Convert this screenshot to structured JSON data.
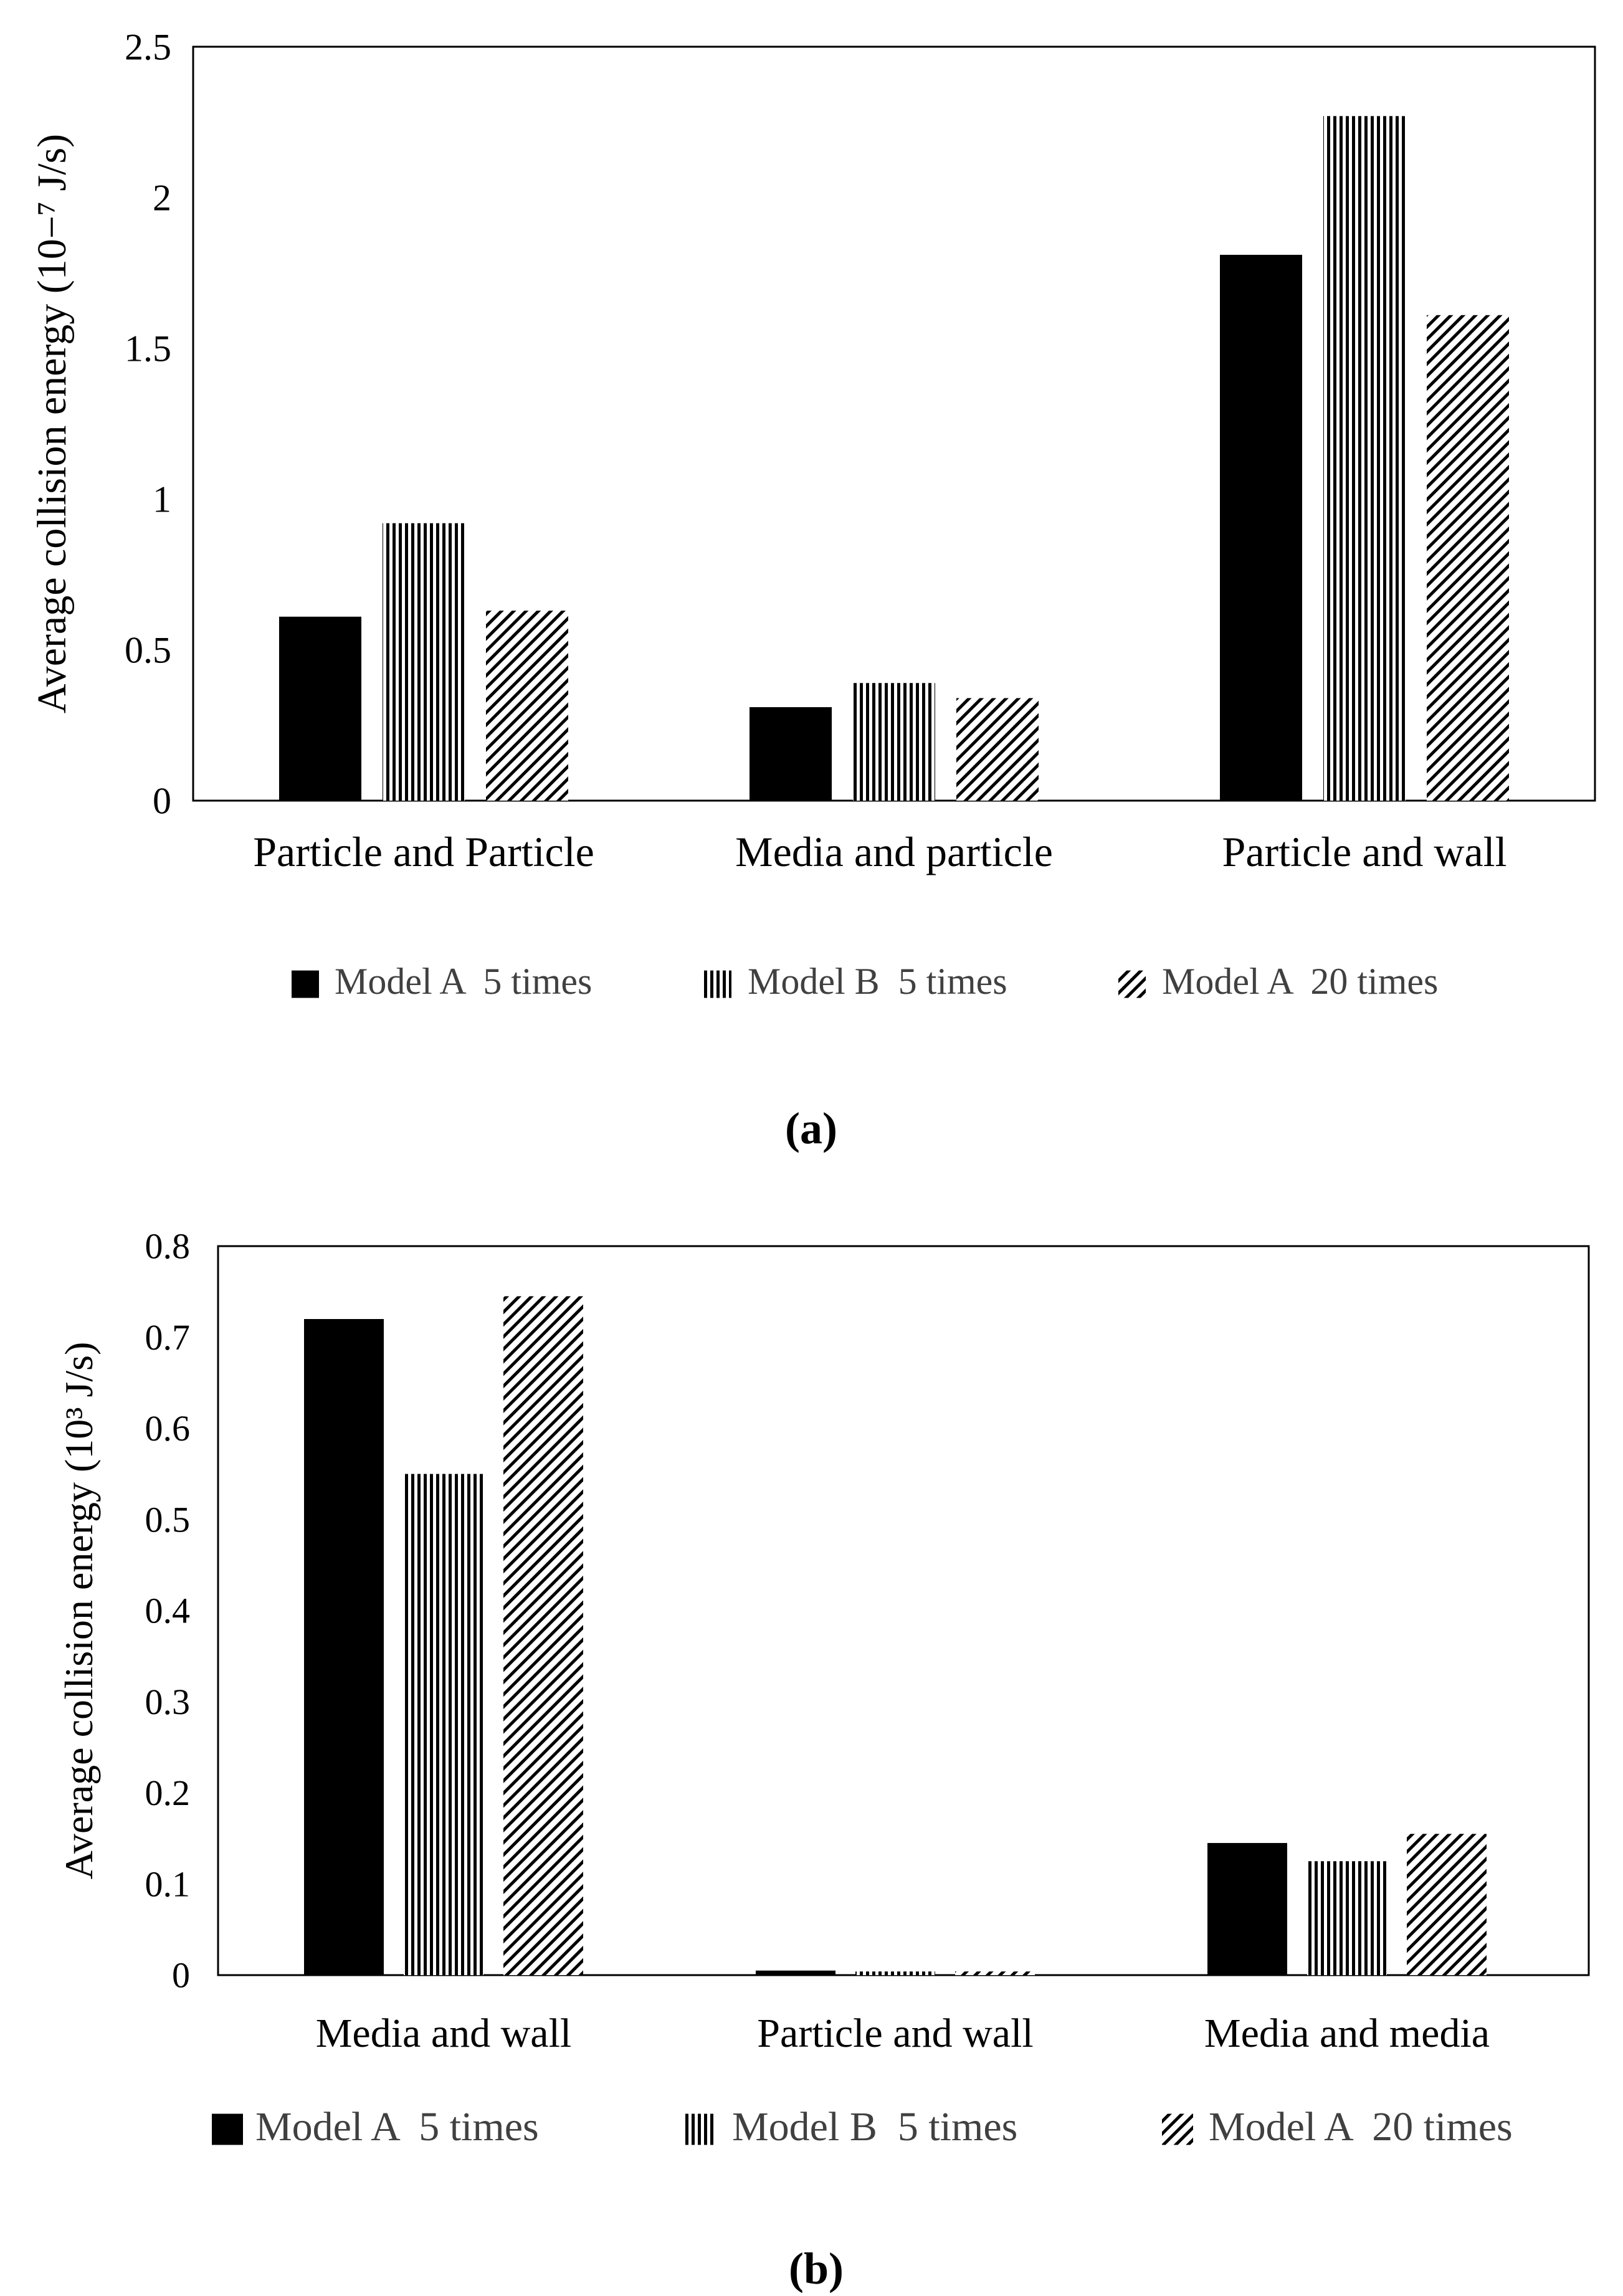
{
  "colors": {
    "ink": "#000000",
    "legend_text": "#404040",
    "background": "#ffffff"
  },
  "chart_data": [
    {
      "panel_label": "(a)",
      "type": "bar",
      "title": "",
      "xlabel": "",
      "ylabel": "Average collision energy (10−⁷ J/s)",
      "ylim": [
        0,
        2.5
      ],
      "yticks": [
        "0",
        "0.5",
        "1",
        "1.5",
        "2",
        "2.5"
      ],
      "grid": false,
      "legend_position": "bottom",
      "categories": [
        "Particle and Particle",
        "Media and particle",
        "Particle and wall"
      ],
      "series": [
        {
          "name": "Model A  5 times",
          "fill": "solid",
          "values": [
            0.61,
            0.31,
            1.81
          ]
        },
        {
          "name": "Model B  5 times",
          "fill": "vertical",
          "values": [
            0.92,
            0.39,
            2.27
          ]
        },
        {
          "name": "Model A  20 times",
          "fill": "diagonal",
          "values": [
            0.63,
            0.34,
            1.61
          ]
        }
      ]
    },
    {
      "panel_label": "(b)",
      "type": "bar",
      "title": "",
      "xlabel": "",
      "ylabel": "Average collision energy (10³ J/s)",
      "ylim": [
        0,
        0.8
      ],
      "yticks": [
        "0",
        "0.1",
        "0.2",
        "0.3",
        "0.4",
        "0.5",
        "0.6",
        "0.7",
        "0.8"
      ],
      "grid": false,
      "legend_position": "bottom",
      "categories": [
        "Media and wall",
        "Particle and wall",
        "Media and media"
      ],
      "series": [
        {
          "name": "Model A  5 times",
          "fill": "solid",
          "values": [
            0.72,
            0.005,
            0.145
          ]
        },
        {
          "name": "Model B  5 times",
          "fill": "vertical",
          "values": [
            0.55,
            0.004,
            0.125
          ]
        },
        {
          "name": "Model A  20 times",
          "fill": "diagonal",
          "values": [
            0.745,
            0.004,
            0.155
          ]
        }
      ]
    }
  ]
}
